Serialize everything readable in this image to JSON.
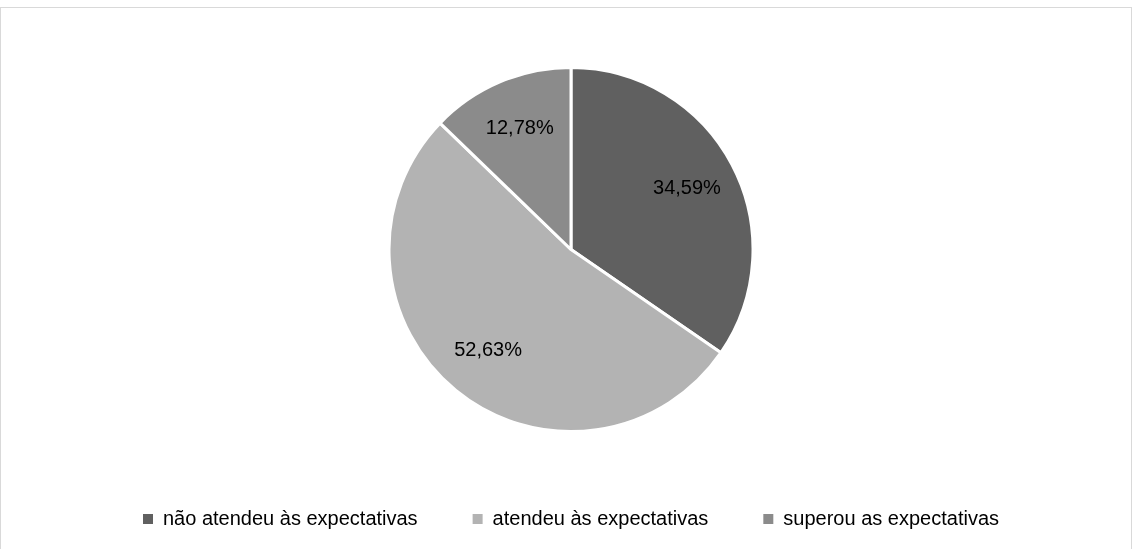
{
  "chart_data": {
    "type": "pie",
    "categories": [
      "não atendeu às expectativas",
      "atendeu às expectativas",
      "superou as expectativas"
    ],
    "values": [
      34.59,
      52.63,
      12.78
    ],
    "colors": [
      "#606060",
      "#b3b3b3",
      "#8b8b8b"
    ],
    "value_labels": [
      "34,59%",
      "52,63%",
      "12,78%"
    ],
    "legend": "bottom"
  }
}
